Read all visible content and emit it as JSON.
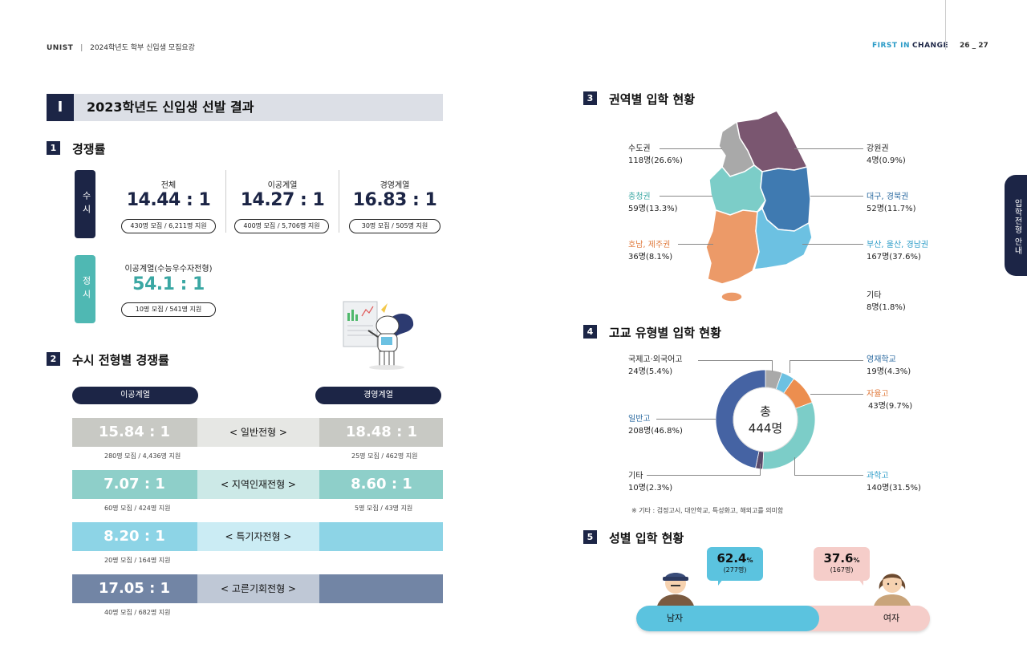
{
  "header": {
    "brand": "UNIST",
    "sep": "|",
    "subtitle": "2024학년도 학부 신입생 모집요강",
    "slogan_first": "FIRST IN",
    "slogan_change": "CHANGE",
    "pages": "26 _ 27"
  },
  "side_tab": {
    "label": "입학전형 안내"
  },
  "chapter": {
    "number": "I",
    "title": "2023학년도 신입생 선발 결과"
  },
  "section1": {
    "num": "1",
    "title": "경쟁률",
    "susi_label": "수시",
    "jeongsi_label": "정시",
    "susi": [
      {
        "name": "전체",
        "ratio": "14.44 : 1",
        "detail": "430명 모집 / 6,211명 지원"
      },
      {
        "name": "이공계열",
        "ratio": "14.27 : 1",
        "detail": "400명 모집 / 5,706명 지원"
      },
      {
        "name": "경영계열",
        "ratio": "16.83 : 1",
        "detail": "30명 모집 / 505명 지원"
      }
    ],
    "jeongsi": {
      "name": "이공계열(수능우수자전형)",
      "ratio": "54.1 : 1",
      "detail": "10명 모집 / 541명 지원"
    }
  },
  "section2": {
    "num": "2",
    "title": "수시 전형별 경쟁률",
    "left_head": "이공계열",
    "right_head": "경영계열",
    "rows": [
      {
        "label": "< 일반전형 >",
        "left": "15.84 : 1",
        "left_detail": "280명 모집 / 4,436명 지원",
        "right": "18.48 : 1",
        "right_detail": "25명 모집 / 462명 지원",
        "color": "#c8c9c4"
      },
      {
        "label": "< 지역인재전형 >",
        "left": "7.07 : 1",
        "left_detail": "60명 모집 / 424명 지원",
        "right": "8.60 : 1",
        "right_detail": "5명 모집 / 43명 지원",
        "color": "#8ecfc9"
      },
      {
        "label": "< 특기자전형 >",
        "left": "8.20 : 1",
        "left_detail": "20명 모집 / 164명 지원",
        "right": "",
        "right_detail": "",
        "color": "#8dd4e6"
      },
      {
        "label": "< 고른기회전형 >",
        "left": "17.05 : 1",
        "left_detail": "40명 모집 / 682명 지원",
        "right": "",
        "right_detail": "",
        "color": "#7285a5"
      }
    ]
  },
  "section3": {
    "num": "3",
    "title": "권역별 입학 현황",
    "regions": [
      {
        "name": "수도권",
        "value": "118명(26.6%)",
        "color": "#222222"
      },
      {
        "name": "강원권",
        "value": "4명(0.9%)",
        "color": "#222222"
      },
      {
        "name": "충청권",
        "value": "59명(13.3%)",
        "color": "#3aa7a3"
      },
      {
        "name": "대구, 경북권",
        "value": "52명(11.7%)",
        "color": "#2b6aa0"
      },
      {
        "name": "호남, 제주권",
        "value": "36명(8.1%)",
        "color": "#e07b3e"
      },
      {
        "name": "부산, 울산, 경남권",
        "value": "167명(37.6%)",
        "color": "#2b9bc7"
      },
      {
        "name": "기타",
        "value": "8명(1.8%)",
        "color": "#222222"
      }
    ],
    "map_colors": {
      "capital": "#a9a9a9",
      "gangwon": "#7a5670",
      "chungcheong": "#7ccdc8",
      "daegu": "#3f7ab1",
      "honam": "#ec9a68",
      "busan": "#6cc1e2"
    }
  },
  "section4": {
    "num": "4",
    "title": "고교 유형별 입학 현황",
    "center_1": "총",
    "center_2": "444명",
    "footnote": "※ 기타 : 검정고시, 대안학교, 특성화고, 해외고를 의미함",
    "chart_data": {
      "type": "pie",
      "title": "",
      "total": 444,
      "slices": [
        {
          "name": "국제고·외국어고",
          "count": 24,
          "value": 5.4,
          "label": "24명(5.4%)",
          "color": "#a9a9a9",
          "label_color": "#222222"
        },
        {
          "name": "영재학교",
          "count": 19,
          "value": 4.3,
          "label": "19명(4.3%)",
          "color": "#6cc1e2",
          "label_color": "#2b6aa0"
        },
        {
          "name": "자율고",
          "count": 43,
          "value": 9.7,
          "label": "43명(9.7%)",
          "color": "#ec8e4f",
          "label_color": "#e07b3e"
        },
        {
          "name": "과학고",
          "count": 140,
          "value": 31.5,
          "label": "140명(31.5%)",
          "color": "#7ccdc8",
          "label_color": "#2b9bc7"
        },
        {
          "name": "기타",
          "count": 10,
          "value": 2.3,
          "label": "10명(2.3%)",
          "color": "#5a4a6a",
          "label_color": "#222222"
        },
        {
          "name": "일반고",
          "count": 208,
          "value": 46.8,
          "label": "208명(46.8%)",
          "color": "#4563a3",
          "label_color": "#2b6aa0"
        }
      ]
    }
  },
  "section5": {
    "num": "5",
    "title": "성별 입학 현황",
    "male": {
      "label": "남자",
      "pct": "62.4",
      "pct_unit": "%",
      "count": "(277명)",
      "fraction": 0.624
    },
    "female": {
      "label": "여자",
      "pct": "37.6",
      "pct_unit": "%",
      "count": "(167명)"
    }
  }
}
